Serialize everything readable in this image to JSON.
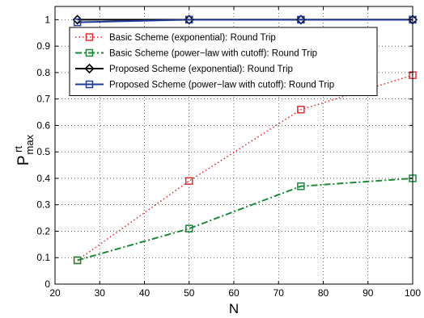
{
  "chart_data": {
    "type": "line",
    "title": "",
    "xlabel": "N",
    "ylabel": "P",
    "ylabel_superscript": "rt",
    "ylabel_subscript": "max",
    "xlim": [
      20,
      100
    ],
    "ylim": [
      0,
      1.05
    ],
    "x_ticks": [
      20,
      30,
      40,
      50,
      60,
      70,
      80,
      90,
      100
    ],
    "y_ticks": [
      0,
      0.1,
      0.2,
      0.3,
      0.4,
      0.5,
      0.6,
      0.7,
      0.8,
      0.9,
      1
    ],
    "y_tick_labels": [
      "0",
      "0.1",
      "0.2",
      "0.3",
      "0.4",
      "0.5",
      "0.6",
      "0.7",
      "0.8",
      "0.9",
      "1"
    ],
    "grid": "dotted",
    "legend_position": "upper-center",
    "series": [
      {
        "name": "Basic Scheme (exponential): Round Trip",
        "x": [
          25,
          50,
          75,
          100
        ],
        "values": [
          0.09,
          0.39,
          0.66,
          0.79
        ],
        "color": "#e03030",
        "line_style": "dotted",
        "marker": "square"
      },
      {
        "name": "Basic Scheme (power−law with cutoff): Round Trip",
        "x": [
          25,
          50,
          75,
          100
        ],
        "values": [
          0.09,
          0.21,
          0.37,
          0.4
        ],
        "color": "#1a8a3a",
        "line_style": "dashdot",
        "marker": "square"
      },
      {
        "name": "Proposed Scheme (exponential): Round Trip",
        "x": [
          25,
          50,
          75,
          100
        ],
        "values": [
          1.0,
          1.0,
          1.0,
          1.0
        ],
        "color": "#000000",
        "line_style": "solid",
        "marker": "diamond"
      },
      {
        "name": "Proposed Scheme (power−law with cutoff): Round Trip",
        "x": [
          25,
          50,
          75,
          100
        ],
        "values": [
          0.99,
          1.0,
          1.0,
          1.0
        ],
        "color": "#1f3a9c",
        "line_style": "solid",
        "marker": "square"
      }
    ]
  }
}
